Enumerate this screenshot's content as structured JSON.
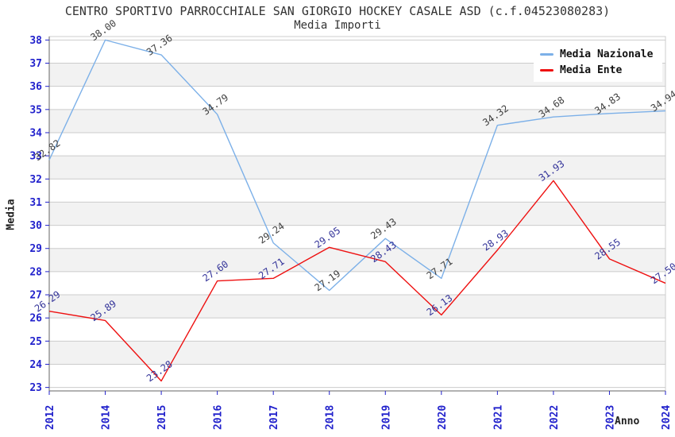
{
  "header": {
    "title": "CENTRO SPORTIVO PARROCCHIALE SAN GIORGIO HOCKEY CASALE ASD (c.f.04523080283)",
    "subtitle": "Media Importi"
  },
  "colors": {
    "tick_label_blue": "#2222cc",
    "gridline": "#cccccc",
    "band_fill": "#f2f2f2",
    "axis_line": "#666666",
    "title_text": "#333333"
  },
  "chart_data": {
    "type": "line",
    "title": "CENTRO SPORTIVO PARROCCHIALE SAN GIORGIO HOCKEY CASALE ASD (c.f.04523080283)",
    "subtitle": "Media Importi",
    "xlabel": "Anno",
    "ylabel": "Media",
    "categories": [
      "2012",
      "2014",
      "2015",
      "2016",
      "2017",
      "2018",
      "2019",
      "2020",
      "2021",
      "2022",
      "2023",
      "2024"
    ],
    "series": [
      {
        "name": "Media Nazionale",
        "color": "#7cb0e8",
        "label_color": "#404040",
        "values": [
          32.82,
          38.0,
          37.36,
          34.79,
          29.24,
          27.19,
          29.43,
          27.71,
          34.32,
          34.68,
          34.83,
          34.94
        ]
      },
      {
        "name": "Media Ente",
        "color": "#ee1111",
        "label_color": "#333399",
        "values": [
          26.29,
          25.89,
          23.28,
          27.6,
          27.71,
          29.05,
          28.43,
          26.13,
          28.93,
          31.93,
          28.55,
          27.5
        ]
      }
    ],
    "yticks": [
      23,
      24,
      25,
      26,
      27,
      28,
      29,
      30,
      31,
      32,
      33,
      34,
      35,
      36,
      37,
      38
    ],
    "ylim": [
      22.85,
      38.15
    ],
    "grid": true,
    "band_rows": true,
    "legend_position": "top-right",
    "value_labels_decimals": 2
  }
}
